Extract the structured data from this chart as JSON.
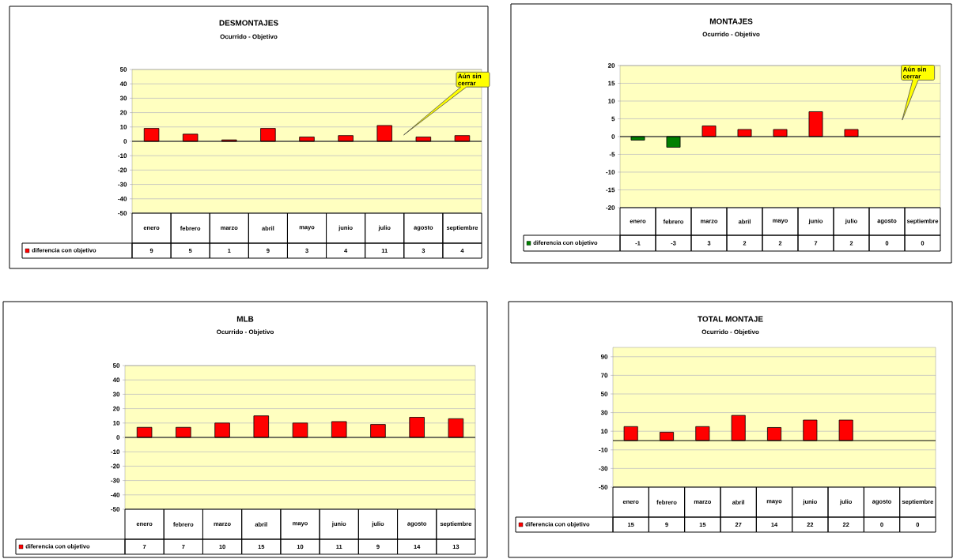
{
  "chart_data": [
    {
      "type": "bar",
      "title": "DESMONTAJES",
      "subtitle": "Ocurrido - Objetivo",
      "categories": [
        "enero",
        "febrero",
        "marzo",
        "abril",
        "mayo",
        "junio",
        "julio",
        "agosto",
        "septiembre"
      ],
      "series": [
        {
          "name": "diferencia con objetivo",
          "color": "#ff0000",
          "values": [
            9,
            5,
            1,
            9,
            3,
            4,
            11,
            3,
            4
          ]
        }
      ],
      "ylim": [
        -50,
        50
      ],
      "yticks": [
        -50,
        -40,
        -30,
        -20,
        -10,
        0,
        10,
        20,
        30,
        40,
        50
      ],
      "grid": "y",
      "legend": "bottom",
      "data_labels": true,
      "annotations": [
        "Aún sin cerrar"
      ]
    },
    {
      "type": "bar",
      "title": "MONTAJES",
      "subtitle": "Ocurrido - Objetivo",
      "categories": [
        "enero",
        "febrero",
        "marzo",
        "abril",
        "mayo",
        "junio",
        "julio",
        "agosto",
        "septiembre"
      ],
      "series": [
        {
          "name": "diferencia con objetivo",
          "color": "#008000",
          "colors": [
            "#008000",
            "#008000",
            "#ff0000",
            "#ff0000",
            "#ff0000",
            "#ff0000",
            "#ff0000",
            "#ff0000",
            "#ff0000"
          ],
          "values": [
            -1,
            -3,
            3,
            2,
            2,
            7,
            2,
            0,
            0
          ]
        }
      ],
      "ylim": [
        -20,
        20
      ],
      "yticks": [
        -20,
        -15,
        -10,
        -5,
        0,
        5,
        10,
        15,
        20
      ],
      "grid": "y",
      "legend": "bottom",
      "data_labels": true,
      "annotations": [
        "Aún sin cerrar"
      ]
    },
    {
      "type": "bar",
      "title": "MLB",
      "subtitle": "Ocurrido - Objetivo",
      "categories": [
        "enero",
        "febrero",
        "marzo",
        "abril",
        "mayo",
        "junio",
        "julio",
        "agosto",
        "septiembre"
      ],
      "series": [
        {
          "name": "diferencia con objetivo",
          "color": "#ff0000",
          "values": [
            7,
            7,
            10,
            15,
            10,
            11,
            9,
            14,
            13
          ]
        }
      ],
      "ylim": [
        -50,
        50
      ],
      "yticks": [
        -50,
        -40,
        -30,
        -20,
        -10,
        0,
        10,
        20,
        30,
        40,
        50
      ],
      "grid": "y",
      "legend": "bottom",
      "data_labels": true
    },
    {
      "type": "bar",
      "title": "TOTAL MONTAJE",
      "subtitle": "Ocurrido - Objetivo",
      "categories": [
        "enero",
        "febrero",
        "marzo",
        "abril",
        "mayo",
        "junio",
        "julio",
        "agosto",
        "septiembre"
      ],
      "series": [
        {
          "name": "diferencia con objetivo",
          "color": "#ff0000",
          "values": [
            15,
            9,
            15,
            27,
            14,
            22,
            22,
            0,
            0
          ]
        }
      ],
      "ylim": [
        -50,
        100
      ],
      "yticks": [
        -50,
        -30,
        -10,
        10,
        30,
        50,
        70,
        90
      ],
      "grid": "y",
      "legend": "bottom",
      "data_labels": true
    }
  ]
}
